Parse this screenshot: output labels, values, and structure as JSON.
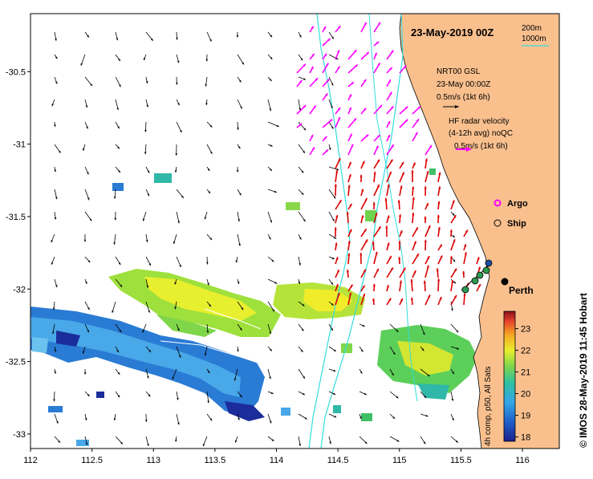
{
  "map": {
    "title": "23-May-2019 00Z",
    "x_ticks": [
      112,
      112.5,
      113,
      113.5,
      114,
      114.5,
      115,
      115.5,
      116
    ],
    "y_ticks": [
      -30.5,
      -31,
      -31.5,
      -32,
      -32.5,
      -33
    ],
    "xlim": [
      112,
      116.3
    ],
    "ylim": [
      -33.1,
      -30.1
    ]
  },
  "legend": {
    "isobath_1": "200m",
    "isobath_2": "1000m",
    "gsl_line1": "NRT00 GSL",
    "gsl_line2": "23-May 00:00Z",
    "gsl_line3": "0.5m/s (1kt 6h)",
    "hf_line1": "HF radar velocity",
    "hf_line2": "(4-12h avg) noQC",
    "hf_line3": "0.5m/s (1kt 6h)",
    "argo_label": "Argo",
    "ship_label": "Ship",
    "city_label": "Perth"
  },
  "colorbar": {
    "label": "4h comp, p50, All Sats",
    "ticks": [
      18,
      19,
      20,
      21,
      22,
      23
    ],
    "range": [
      17.8,
      23.8
    ]
  },
  "credit": "© IMOS 28-May-2019 11:45 Hobart",
  "colors": {
    "land": "#f9c08e",
    "isobath": "#33dddd",
    "hf_radar": "#ff00ff",
    "hf_radar_south": "#dd0000",
    "geostrophic": "#000000"
  }
}
